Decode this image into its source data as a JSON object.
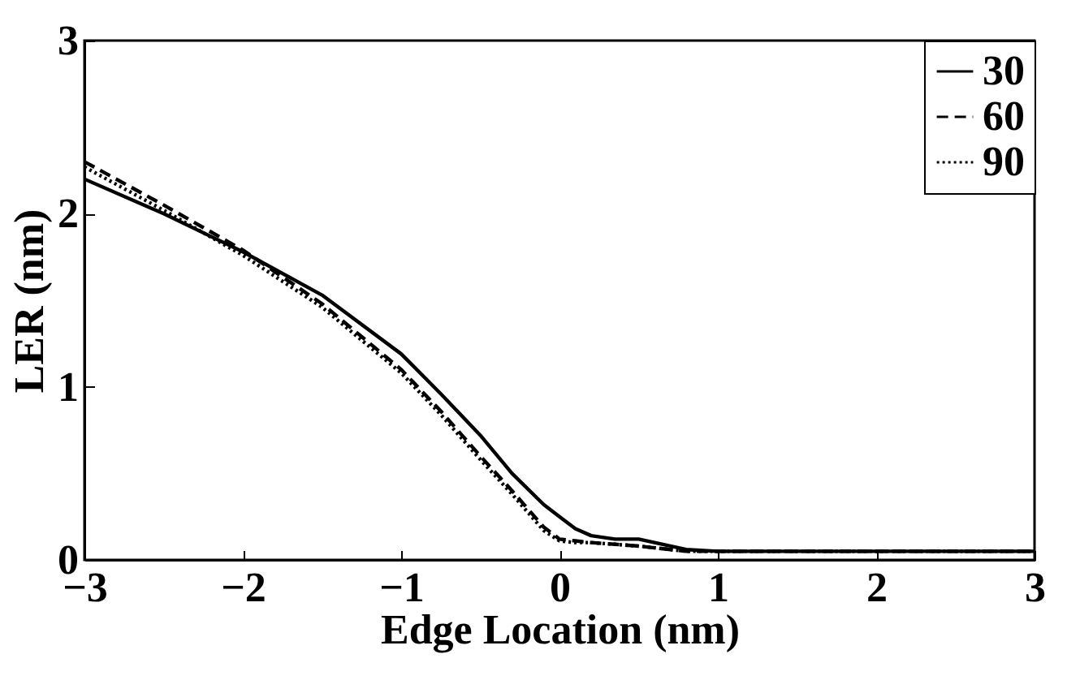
{
  "chart_data": {
    "type": "line",
    "xlabel": "Edge Location (nm)",
    "ylabel": "LER (nm)",
    "xlim": [
      -3,
      3
    ],
    "ylim": [
      0,
      3
    ],
    "xticks": [
      -3,
      -2,
      -1,
      0,
      1,
      2,
      3
    ],
    "yticks": [
      0,
      1,
      2,
      3
    ],
    "grid": false,
    "legend": "top right",
    "x": [
      -3,
      -2.5,
      -2,
      -1.5,
      -1,
      -0.75,
      -0.5,
      -0.3,
      -0.1,
      0,
      0.1,
      0.2,
      0.35,
      0.5,
      0.6,
      0.8,
      1,
      1.5,
      2,
      2.5,
      3
    ],
    "series": [
      {
        "name": "30",
        "color": "#000000",
        "line_style": "solid",
        "values": [
          2.2,
          2.0,
          1.78,
          1.53,
          1.19,
          0.96,
          0.72,
          0.5,
          0.32,
          0.25,
          0.18,
          0.14,
          0.12,
          0.12,
          0.1,
          0.06,
          0.05,
          0.05,
          0.05,
          0.05,
          0.05
        ]
      },
      {
        "name": "60",
        "color": "#000000",
        "line_style": "dashed",
        "values": [
          2.3,
          2.05,
          1.79,
          1.48,
          1.1,
          0.86,
          0.6,
          0.4,
          0.19,
          0.12,
          0.11,
          0.1,
          0.09,
          0.08,
          0.07,
          0.05,
          0.05,
          0.05,
          0.05,
          0.05,
          0.05
        ]
      },
      {
        "name": "90",
        "color": "#000000",
        "line_style": "dotted",
        "values": [
          2.27,
          2.02,
          1.76,
          1.46,
          1.08,
          0.84,
          0.58,
          0.38,
          0.17,
          0.11,
          0.1,
          0.1,
          0.09,
          0.08,
          0.07,
          0.05,
          0.05,
          0.05,
          0.05,
          0.05,
          0.05
        ]
      }
    ]
  }
}
